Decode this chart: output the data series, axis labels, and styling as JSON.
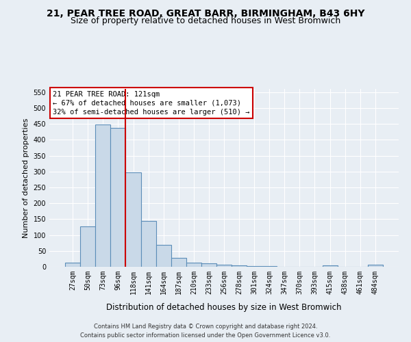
{
  "title1": "21, PEAR TREE ROAD, GREAT BARR, BIRMINGHAM, B43 6HY",
  "title2": "Size of property relative to detached houses in West Bromwich",
  "xlabel": "Distribution of detached houses by size in West Bromwich",
  "ylabel": "Number of detached properties",
  "footer1": "Contains HM Land Registry data © Crown copyright and database right 2024.",
  "footer2": "Contains public sector information licensed under the Open Government Licence v3.0.",
  "categories": [
    "27sqm",
    "50sqm",
    "73sqm",
    "96sqm",
    "118sqm",
    "141sqm",
    "164sqm",
    "187sqm",
    "210sqm",
    "233sqm",
    "256sqm",
    "278sqm",
    "301sqm",
    "324sqm",
    "347sqm",
    "370sqm",
    "393sqm",
    "415sqm",
    "438sqm",
    "461sqm",
    "484sqm"
  ],
  "values": [
    13,
    127,
    448,
    438,
    297,
    145,
    70,
    27,
    13,
    10,
    6,
    5,
    3,
    2,
    1,
    1,
    1,
    5,
    1,
    1,
    6
  ],
  "bar_color": "#c9d9e8",
  "bar_edge_color": "#5b8db8",
  "bar_linewidth": 0.8,
  "highlight_line_index": 4,
  "highlight_line_color": "#cc0000",
  "annotation_text": "21 PEAR TREE ROAD: 121sqm\n← 67% of detached houses are smaller (1,073)\n32% of semi-detached houses are larger (510) →",
  "annotation_box_color": "#ffffff",
  "annotation_box_edgecolor": "#cc0000",
  "ylim": [
    0,
    560
  ],
  "yticks": [
    0,
    50,
    100,
    150,
    200,
    250,
    300,
    350,
    400,
    450,
    500,
    550
  ],
  "bg_color": "#e8eef4",
  "plot_bg_color": "#e8eef4",
  "grid_color": "#ffffff",
  "title1_fontsize": 10,
  "title2_fontsize": 9,
  "ylabel_fontsize": 8,
  "xlabel_fontsize": 8.5,
  "tick_fontsize": 7,
  "annotation_fontsize": 7.5,
  "footer_fontsize": 6
}
